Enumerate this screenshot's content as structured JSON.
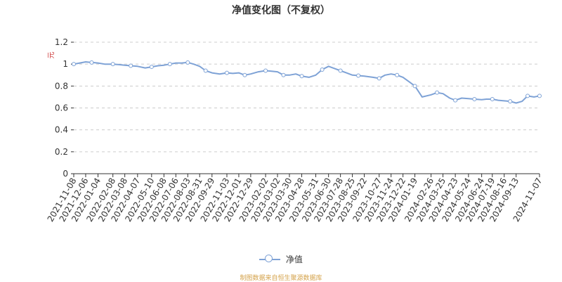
{
  "title": "净值变化图（不复权）",
  "source_note": "制图数据来自恒生聚源数据库",
  "colors": {
    "series": "#7ea2d6",
    "grid": "#cccccc",
    "axis": "#333333",
    "ylabel": "#cc3333",
    "source": "#d4a24a"
  },
  "chart_data": {
    "type": "line",
    "ylabel": "元",
    "xlabel": "",
    "ylim": [
      0,
      1.2
    ],
    "yticks": [
      "0",
      "0.2",
      "0.4",
      "0.6",
      "0.8",
      "1",
      "1.2"
    ],
    "grid": true,
    "legend_position": "bottom-center",
    "x_tick_labels": [
      "2021-11-08",
      "2021-12-06",
      "2022-01-04",
      "2022-02-08",
      "2022-03-08",
      "2022-04-07",
      "2022-05-10",
      "2022-06-08",
      "2022-07-06",
      "2022-08-03",
      "2022-08-31",
      "2022-09-29",
      "2022-11-03",
      "2022-12-01",
      "2022-12-29",
      "2023-02-02",
      "2023-03-02",
      "2023-03-30",
      "2023-04-28",
      "2023-05-31",
      "2023-06-30",
      "2023-07-28",
      "2023-08-25",
      "2023-09-22",
      "2023-10-27",
      "2023-11-24",
      "2023-12-22",
      "2024-01-19",
      "2024-02-26",
      "2024-03-25",
      "2024-04-23",
      "2024-05-24",
      "2024-06-24",
      "2024-07-19",
      "2024-08-16",
      "2024-09-13",
      "2024-11-07"
    ],
    "series": [
      {
        "name": "净值",
        "points": [
          [
            "2021-11-08",
            1.0
          ],
          [
            "2021-11-22",
            1.01
          ],
          [
            "2021-12-06",
            1.02
          ],
          [
            "2021-12-20",
            1.015
          ],
          [
            "2022-01-04",
            1.01
          ],
          [
            "2022-01-20",
            1.0
          ],
          [
            "2022-02-08",
            1.0
          ],
          [
            "2022-02-22",
            0.995
          ],
          [
            "2022-03-08",
            0.99
          ],
          [
            "2022-03-22",
            0.985
          ],
          [
            "2022-04-07",
            0.98
          ],
          [
            "2022-04-25",
            0.965
          ],
          [
            "2022-05-10",
            0.975
          ],
          [
            "2022-05-25",
            0.985
          ],
          [
            "2022-06-08",
            0.99
          ],
          [
            "2022-06-22",
            1.0
          ],
          [
            "2022-07-06",
            1.01
          ],
          [
            "2022-07-20",
            1.01
          ],
          [
            "2022-08-03",
            1.015
          ],
          [
            "2022-08-17",
            1.0
          ],
          [
            "2022-08-31",
            0.98
          ],
          [
            "2022-09-14",
            0.94
          ],
          [
            "2022-09-29",
            0.92
          ],
          [
            "2022-10-17",
            0.91
          ],
          [
            "2022-11-03",
            0.92
          ],
          [
            "2022-11-17",
            0.915
          ],
          [
            "2022-12-01",
            0.92
          ],
          [
            "2022-12-15",
            0.9
          ],
          [
            "2022-12-29",
            0.91
          ],
          [
            "2023-01-16",
            0.93
          ],
          [
            "2023-02-02",
            0.94
          ],
          [
            "2023-02-16",
            0.935
          ],
          [
            "2023-03-02",
            0.93
          ],
          [
            "2023-03-16",
            0.9
          ],
          [
            "2023-03-30",
            0.9
          ],
          [
            "2023-04-14",
            0.91
          ],
          [
            "2023-04-28",
            0.89
          ],
          [
            "2023-05-15",
            0.88
          ],
          [
            "2023-05-31",
            0.9
          ],
          [
            "2023-06-15",
            0.95
          ],
          [
            "2023-06-30",
            0.98
          ],
          [
            "2023-07-14",
            0.96
          ],
          [
            "2023-07-28",
            0.94
          ],
          [
            "2023-08-11",
            0.92
          ],
          [
            "2023-08-25",
            0.9
          ],
          [
            "2023-09-08",
            0.895
          ],
          [
            "2023-09-22",
            0.89
          ],
          [
            "2023-10-12",
            0.88
          ],
          [
            "2023-10-27",
            0.87
          ],
          [
            "2023-11-10",
            0.9
          ],
          [
            "2023-11-24",
            0.91
          ],
          [
            "2023-12-08",
            0.9
          ],
          [
            "2023-12-22",
            0.88
          ],
          [
            "2024-01-05",
            0.84
          ],
          [
            "2024-01-19",
            0.8
          ],
          [
            "2024-02-05",
            0.7
          ],
          [
            "2024-02-26",
            0.72
          ],
          [
            "2024-03-11",
            0.74
          ],
          [
            "2024-03-25",
            0.73
          ],
          [
            "2024-04-10",
            0.69
          ],
          [
            "2024-04-23",
            0.67
          ],
          [
            "2024-05-08",
            0.69
          ],
          [
            "2024-05-24",
            0.685
          ],
          [
            "2024-06-07",
            0.68
          ],
          [
            "2024-06-24",
            0.675
          ],
          [
            "2024-07-05",
            0.68
          ],
          [
            "2024-07-19",
            0.68
          ],
          [
            "2024-08-02",
            0.67
          ],
          [
            "2024-08-16",
            0.665
          ],
          [
            "2024-08-30",
            0.66
          ],
          [
            "2024-09-13",
            0.645
          ],
          [
            "2024-09-27",
            0.66
          ],
          [
            "2024-10-10",
            0.71
          ],
          [
            "2024-10-25",
            0.7
          ],
          [
            "2024-11-07",
            0.71
          ]
        ]
      }
    ]
  }
}
